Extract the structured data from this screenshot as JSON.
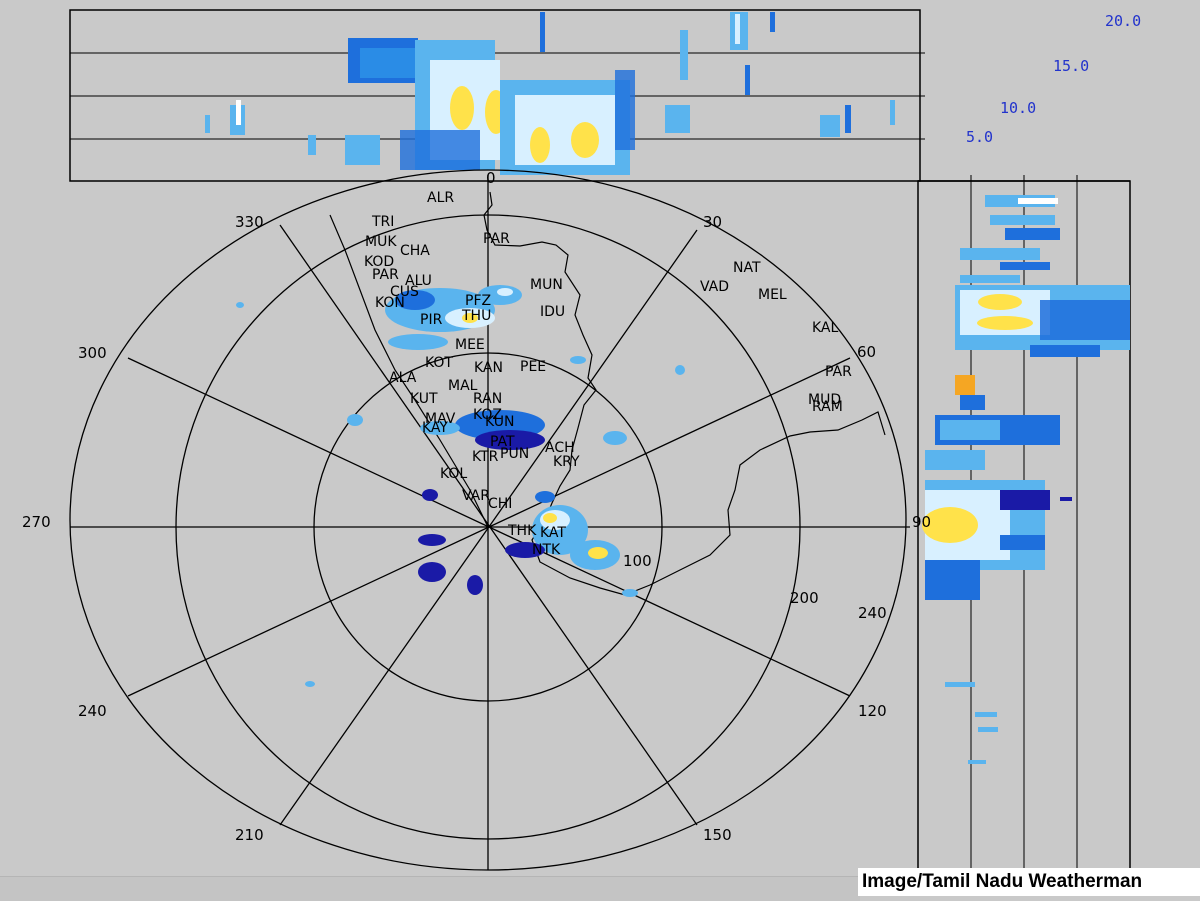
{
  "credit": "Image/Tamil Nadu Weatherman",
  "range_labels": [
    "100",
    "200",
    "240"
  ],
  "height_labels": [
    "20.0",
    "15.0",
    "10.0",
    "5.0"
  ],
  "bearings": [
    {
      "deg": 0,
      "label": "0"
    },
    {
      "deg": 30,
      "label": "30"
    },
    {
      "deg": 60,
      "label": "60"
    },
    {
      "deg": 90,
      "label": "90"
    },
    {
      "deg": 120,
      "label": "120"
    },
    {
      "deg": 150,
      "label": "150"
    },
    {
      "deg": 210,
      "label": "210"
    },
    {
      "deg": 240,
      "label": "240"
    },
    {
      "deg": 270,
      "label": "270"
    },
    {
      "deg": 300,
      "label": "300"
    },
    {
      "deg": 330,
      "label": "330"
    }
  ],
  "stations": [
    "ALR",
    "TRI",
    "PAR",
    "MUK",
    "CHA",
    "KOD",
    "PAR",
    "ALU",
    "CUS",
    "KON",
    "PFZ",
    "MUN",
    "THU",
    "PIR",
    "IDU",
    "MEE",
    "KOT",
    "KAN",
    "PEE",
    "ALA",
    "MAL",
    "KUT",
    "RAN",
    "MAV",
    "KOZ",
    "KAY",
    "KUN",
    "PAT",
    "KTR",
    "PUN",
    "ACH",
    "KRY",
    "KOL",
    "VAR",
    "CHI",
    "THK",
    "KAT",
    "NTK",
    "NAT",
    "VAD",
    "MEL",
    "KAL",
    "PAR",
    "MUD",
    "RAM"
  ],
  "colors": {
    "background": "#c9c9c9",
    "light_blue": "#5ab4ee",
    "mid_blue": "#1e6fdc",
    "dark_blue": "#1a1aa6",
    "pale": "#d8f0ff",
    "yellow": "#ffe24a",
    "orange": "#f5a623"
  }
}
